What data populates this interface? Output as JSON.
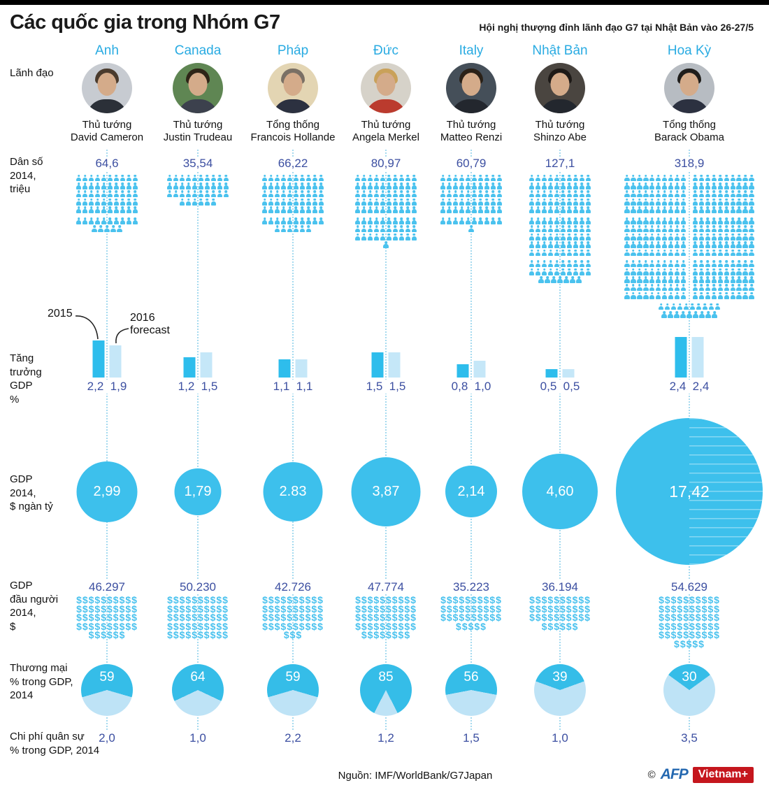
{
  "header": {
    "title": "Các quốc gia trong Nhóm G7",
    "subtitle": "Hội nghị thượng đỉnh lãnh đạo G7 tại Nhật Bản vào 26-27/5"
  },
  "row_labels": {
    "leader": "Lãnh đạo",
    "population": "Dân số\n2014,\ntriệu",
    "growth": "Tăng\ntrưởng\nGDP\n%",
    "gdp": "GDP\n2014,\n$ ngàn tỷ",
    "gdp_per_capita": "GDP\nđầu người\n2014,\n$",
    "trade": "Thương mại\n%  trong GDP,\n2014",
    "military": "Chi phí quân sự\n% trong GDP,  2014"
  },
  "annotations": {
    "y2015": "2015",
    "y2016": "2016\nforecast"
  },
  "colors": {
    "icon": "#4AC2EE",
    "cyan_header": "#29ABE2",
    "num_blue": "#3C4FA1",
    "bar_2015": "#2EBDEC",
    "bar_2016": "#C5E7F8",
    "circle": "#3DC0EC",
    "pie_dark": "#35BDE8",
    "pie_light": "#BEE3F6",
    "dotted": "#A5DAEF",
    "afp_blue": "#2468B0",
    "brand_red": "#C5161D"
  },
  "countries": [
    {
      "name": "Anh",
      "leader_title": "Thủ tướng",
      "leader_name": "David Cameron",
      "population_display": "64,6",
      "population_icons": 65,
      "growth_2015": "2,2",
      "growth_2015_val": 2.2,
      "growth_2016": "1,9",
      "growth_2016_val": 1.9,
      "gdp_display": "2,99",
      "gdp_val": 2.99,
      "gdp_pc_display": "46.297",
      "gdp_pc_icons": 46,
      "trade_display": "59",
      "trade_val": 59,
      "military_display": "2,0",
      "photo": {
        "bg": "#c7cbd1",
        "hair": "#4a3b2d",
        "coat": "#2b3038"
      }
    },
    {
      "name": "Canada",
      "leader_title": "Thủ tướng",
      "leader_name": "Justin Trudeau",
      "population_display": "35,54",
      "population_icons": 36,
      "growth_2015": "1,2",
      "growth_2015_val": 1.2,
      "growth_2016": "1,5",
      "growth_2016_val": 1.5,
      "gdp_display": "1,79",
      "gdp_val": 1.79,
      "gdp_pc_display": "50.230",
      "gdp_pc_icons": 50,
      "trade_display": "64",
      "trade_val": 64,
      "military_display": "1,0",
      "photo": {
        "bg": "#5f8653",
        "hair": "#2e2417",
        "coat": "#3c414d"
      }
    },
    {
      "name": "Pháp",
      "leader_title": "Tổng thống",
      "leader_name": "Francois Hollande",
      "population_display": "66,22",
      "population_icons": 66,
      "growth_2015": "1,1",
      "growth_2015_val": 1.1,
      "growth_2016": "1,1",
      "growth_2016_val": 1.1,
      "gdp_display": "2.83",
      "gdp_val": 2.83,
      "gdp_pc_display": "42.726",
      "gdp_pc_icons": 43,
      "trade_display": "59",
      "trade_val": 59,
      "military_display": "2,2",
      "photo": {
        "bg": "#e3d5b3",
        "hair": "#7a7065",
        "coat": "#2c3140"
      }
    },
    {
      "name": "Đức",
      "leader_title": "Thủ tướng",
      "leader_name": "Angela Merkel",
      "population_display": "80,97",
      "population_icons": 81,
      "growth_2015": "1,5",
      "growth_2015_val": 1.5,
      "growth_2016": "1,5",
      "growth_2016_val": 1.5,
      "gdp_display": "3,87",
      "gdp_val": 3.87,
      "gdp_pc_display": "47.774",
      "gdp_pc_icons": 48,
      "trade_display": "85",
      "trade_val": 85,
      "military_display": "1,2",
      "photo": {
        "bg": "#d6d2c9",
        "hair": "#c9a15a",
        "coat": "#bb3b2e"
      }
    },
    {
      "name": "Italy",
      "leader_title": "Thủ tướng",
      "leader_name": "Matteo Renzi",
      "population_display": "60,79",
      "population_icons": 61,
      "growth_2015": "0,8",
      "growth_2015_val": 0.8,
      "growth_2016": "1,0",
      "growth_2016_val": 1.0,
      "gdp_display": "2,14",
      "gdp_val": 2.14,
      "gdp_pc_display": "35.223",
      "gdp_pc_icons": 35,
      "trade_display": "56",
      "trade_val": 56,
      "military_display": "1,5",
      "photo": {
        "bg": "#454f59",
        "hair": "#2a2118",
        "coat": "#23272e"
      }
    },
    {
      "name": "Nhật Bản",
      "leader_title": "Thủ tướng",
      "leader_name": "Shinzo Abe",
      "population_display": "127,1",
      "population_icons": 127,
      "growth_2015": "0,5",
      "growth_2015_val": 0.5,
      "growth_2016": "0,5",
      "growth_2016_val": 0.5,
      "gdp_display": "4,60",
      "gdp_val": 4.6,
      "gdp_pc_display": "36.194",
      "gdp_pc_icons": 36,
      "trade_display": "39",
      "trade_val": 39,
      "military_display": "1,0",
      "photo": {
        "bg": "#4a4540",
        "hair": "#1e1a17",
        "coat": "#23272e"
      }
    },
    {
      "name": "Hoa Kỳ",
      "leader_title": "Tổng thống",
      "leader_name": "Barack Obama",
      "population_display": "318,9",
      "population_icons": 319,
      "wide_grid": true,
      "gdp_stripes": true,
      "growth_2015": "2,4",
      "growth_2015_val": 2.4,
      "growth_2016": "2,4",
      "growth_2016_val": 2.4,
      "gdp_display": "17,42",
      "gdp_val": 17.42,
      "gdp_pc_display": "54.629",
      "gdp_pc_icons": 55,
      "trade_display": "30",
      "trade_val": 30,
      "military_display": "3,5",
      "photo": {
        "bg": "#b7bcc2",
        "hair": "#1f1d1b",
        "coat": "#2c3140"
      }
    }
  ],
  "footer": {
    "source": "Nguồn: IMF/WorldBank/G7Japan",
    "copyright": "©",
    "afp": "AFP",
    "brand": "Vietnam+"
  },
  "chart_data": {
    "type": "table",
    "title": "Các quốc gia trong Nhóm G7",
    "subtitle": "Hội nghị thượng đỉnh lãnh đạo G7 tại Nhật Bản vào 26-27/5",
    "categories": [
      "Anh",
      "Canada",
      "Pháp",
      "Đức",
      "Italy",
      "Nhật Bản",
      "Hoa Kỳ"
    ],
    "series": [
      {
        "name": "Dân số 2014 (triệu)",
        "values": [
          64.6,
          35.54,
          66.22,
          80.97,
          60.79,
          127.1,
          318.9
        ]
      },
      {
        "name": "Tăng trưởng GDP 2015 (%)",
        "values": [
          2.2,
          1.2,
          1.1,
          1.5,
          0.8,
          0.5,
          2.4
        ]
      },
      {
        "name": "Tăng trưởng GDP 2016 forecast (%)",
        "values": [
          1.9,
          1.5,
          1.1,
          1.5,
          1.0,
          0.5,
          2.4
        ]
      },
      {
        "name": "GDP 2014 ($ ngàn tỷ)",
        "values": [
          2.99,
          1.79,
          2.83,
          3.87,
          2.14,
          4.6,
          17.42
        ]
      },
      {
        "name": "GDP đầu người 2014 ($)",
        "values": [
          46297,
          50230,
          42726,
          47774,
          35223,
          36194,
          54629
        ]
      },
      {
        "name": "Thương mại % trong GDP 2014",
        "values": [
          59,
          64,
          59,
          85,
          56,
          39,
          30
        ]
      },
      {
        "name": "Chi phí quân sự % trong GDP 2014",
        "values": [
          2.0,
          1.0,
          2.2,
          1.2,
          1.5,
          1.0,
          3.5
        ]
      }
    ]
  }
}
